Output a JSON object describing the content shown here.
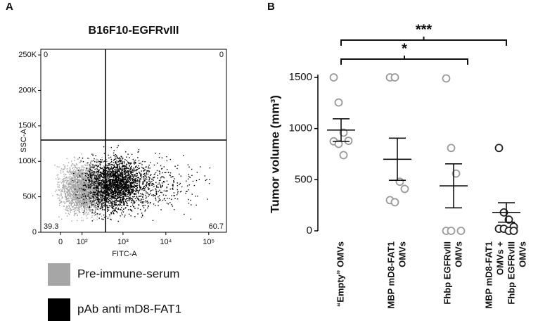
{
  "chart_data": [
    {
      "type": "flow-cytometry",
      "panel": "A",
      "title": "B16F10-EGFRvIII",
      "xlabel": "FITC-A",
      "ylabel": "SSC-A",
      "xscale": "biexponential",
      "xlim": [
        -89,
        259000
      ],
      "ylim": [
        0,
        258000
      ],
      "xticks": [
        0,
        {
          "value": 100,
          "label": "10²"
        },
        {
          "value": 1000,
          "label": "10³"
        },
        {
          "value": 10000,
          "label": "10⁴"
        },
        {
          "value": 100000,
          "label": "10⁵"
        }
      ],
      "yticks": [
        0,
        {
          "value": 50000,
          "label": "50K"
        },
        {
          "value": 100000,
          "label": "100K"
        },
        {
          "value": 150000,
          "label": "150K"
        },
        {
          "value": 200000,
          "label": "200K"
        },
        {
          "value": 250000,
          "label": "250K"
        }
      ],
      "gate": {
        "x": 390,
        "y": 130000
      },
      "quadrants": {
        "top_left": "0",
        "top_right": "0",
        "bottom_left": "39.3",
        "bottom_right": "60.7"
      },
      "series": [
        {
          "name": "Pre-immune-serum",
          "color": "#a6a6a6"
        },
        {
          "name": "pAb anti mD8-FAT1",
          "color": "#000000"
        }
      ]
    },
    {
      "type": "dot-plot",
      "panel": "B",
      "ylabel": "Tumor volume (mm³)",
      "ylim": [
        0,
        1500
      ],
      "yticks": [
        0,
        500,
        1000,
        1500
      ],
      "categories": [
        [
          "“Empty” OMVs"
        ],
        [
          "MBP mD8-FAT1",
          "OMVs"
        ],
        [
          "Fhbp EGFRvIII",
          "OMVs"
        ],
        [
          "MBP mD8-FAT1",
          "OMVs +",
          "Fhbp EGFRvIII",
          "OMVs"
        ]
      ],
      "values": [
        [
          1500,
          1255,
          960,
          880,
          875,
          850,
          740
        ],
        [
          1500,
          1500,
          480,
          410,
          300,
          280
        ],
        [
          1490,
          810,
          560,
          0,
          0,
          0
        ],
        [
          810,
          180,
          110,
          40,
          20,
          20,
          0,
          0
        ]
      ],
      "mean": [
        985,
        700,
        440,
        180
      ],
      "sem": [
        110,
        206,
        215,
        95
      ],
      "colors": [
        "#9a9a9a",
        "#9a9a9a",
        "#9a9a9a",
        "#222222"
      ],
      "significance": [
        {
          "pair": [
            0,
            3
          ],
          "label": "***"
        },
        {
          "pair": [
            0,
            2
          ],
          "label": "*"
        }
      ]
    }
  ]
}
